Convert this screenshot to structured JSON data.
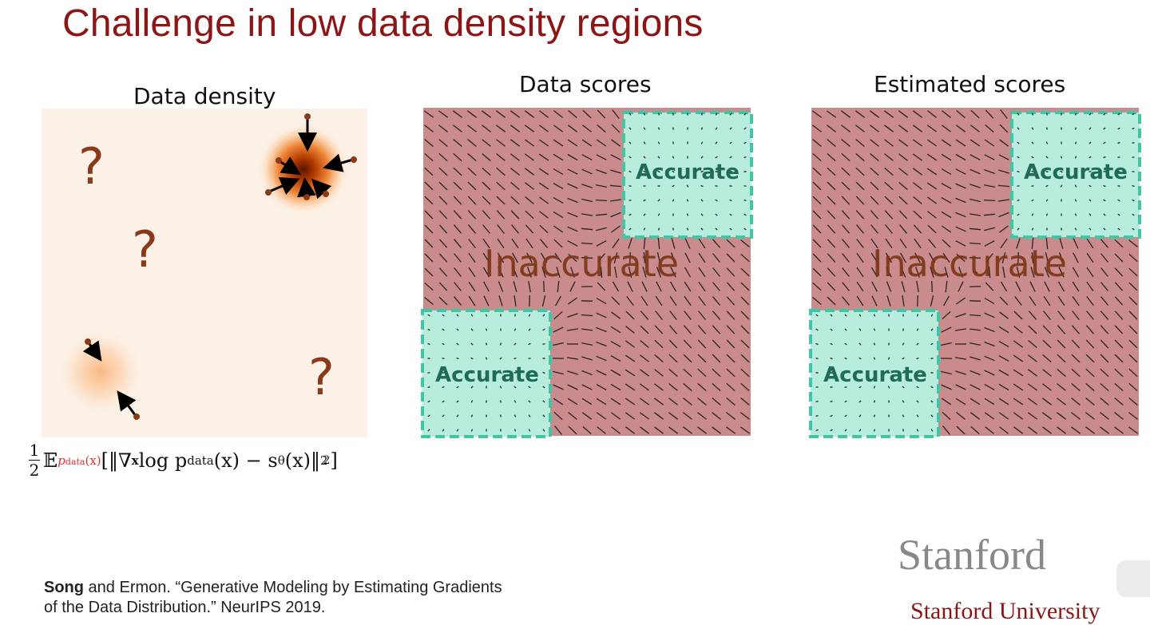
{
  "slide": {
    "title": "Challenge in low data density regions"
  },
  "panels": {
    "density": {
      "title": "Data density",
      "question_mark": "?"
    },
    "data_scores": {
      "title": "Data scores",
      "accurate_label": "Accurate",
      "inaccurate_label": "Inaccurate"
    },
    "estimated_scores": {
      "title": "Estimated scores",
      "accurate_label": "Accurate",
      "inaccurate_label": "Inaccurate"
    }
  },
  "formula": {
    "frac_num": "1",
    "frac_den": "2",
    "expectation": "𝔼",
    "subscript": "p",
    "subscript_rest": "data",
    "subscript_arg": "(x)",
    "body_1": "[‖∇",
    "nabla_sub": "x",
    "body_2": " log p",
    "pdata_sub": "data",
    "body_3": "(x) − s",
    "theta_sub": "θ",
    "body_4": "(x)‖",
    "norm_sub": "2",
    "norm_sup": "2",
    "body_5": "]"
  },
  "citation": {
    "author": "Song",
    "rest_line1": " and Ermon. “Generative Modeling by Estimating Gradients",
    "line2": "of the Data Distribution.” NeurIPS 2019."
  },
  "logo": {
    "wordmark": "Stanford",
    "university": "Stanford University"
  },
  "colors": {
    "title": "#8c1515",
    "inaccurate_bg": "#c98b8b",
    "accurate_bg": "#b8ecdc",
    "accurate_border": "#3cc7a6",
    "density_bg": "#fcf1e6",
    "question_mark": "#8a3a1a"
  }
}
